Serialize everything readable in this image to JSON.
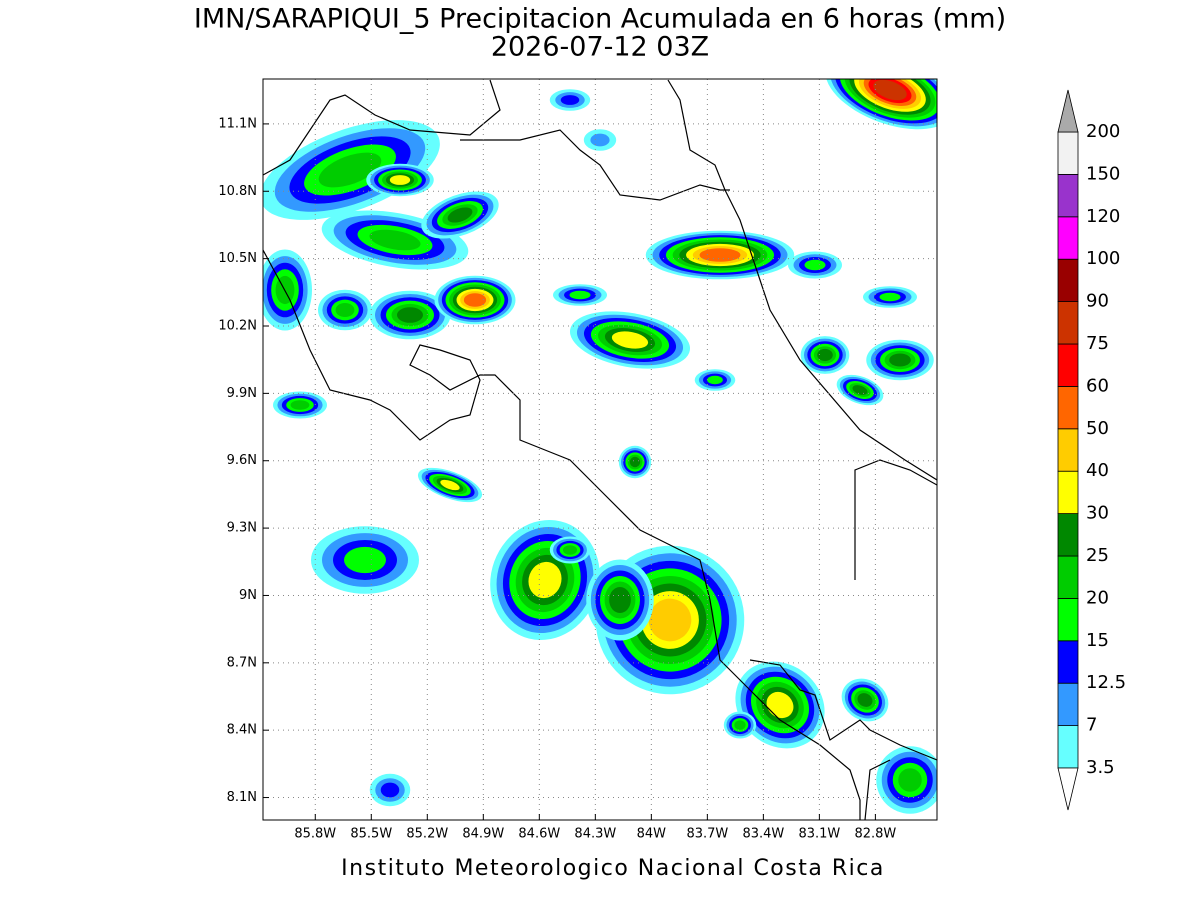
{
  "header": {
    "title": "IMN/SARAPIQUI_5 Precipitacion Acumulada en 6 horas (mm)",
    "subtitle": "2026-07-12 03Z"
  },
  "map": {
    "xlim": [
      -86.08,
      -82.47
    ],
    "ylim": [
      8.0,
      11.3
    ],
    "grid": true,
    "xticks": [
      {
        "value": -85.8,
        "label": "85.8W"
      },
      {
        "value": -85.5,
        "label": "85.5W"
      },
      {
        "value": -85.2,
        "label": "85.2W"
      },
      {
        "value": -84.9,
        "label": "84.9W"
      },
      {
        "value": -84.6,
        "label": "84.6W"
      },
      {
        "value": -84.3,
        "label": "84.3W"
      },
      {
        "value": -84.0,
        "label": "84W"
      },
      {
        "value": -83.7,
        "label": "83.7W"
      },
      {
        "value": -83.4,
        "label": "83.4W"
      },
      {
        "value": -83.1,
        "label": "83.1W"
      },
      {
        "value": -82.8,
        "label": "82.8W"
      }
    ],
    "yticks": [
      {
        "value": 8.1,
        "label": "8.1N"
      },
      {
        "value": 8.4,
        "label": "8.4N"
      },
      {
        "value": 8.7,
        "label": "8.7N"
      },
      {
        "value": 9.0,
        "label": "9N"
      },
      {
        "value": 9.3,
        "label": "9.3N"
      },
      {
        "value": 9.6,
        "label": "9.6N"
      },
      {
        "value": 9.9,
        "label": "9.9N"
      },
      {
        "value": 10.2,
        "label": "10.2N"
      },
      {
        "value": 10.5,
        "label": "10.5N"
      },
      {
        "value": 10.8,
        "label": "10.8N"
      },
      {
        "value": 11.1,
        "label": "11.1N"
      }
    ]
  },
  "colorbar": {
    "levels": [
      3.5,
      7,
      12.5,
      15,
      20,
      25,
      30,
      40,
      50,
      60,
      75,
      90,
      100,
      120,
      150,
      200
    ],
    "colors": [
      "#ffffff",
      "#66ffff",
      "#3399ff",
      "#0000ff",
      "#00ff00",
      "#00cc00",
      "#008800",
      "#ffff00",
      "#ffcc00",
      "#ff6600",
      "#ff0000",
      "#cc3300",
      "#990000",
      "#ff00ff",
      "#9933cc",
      "#f2f2f2",
      "#aaaaaa"
    ]
  },
  "footer": "Instituto Meteorologico Nacional Costa Rica"
}
